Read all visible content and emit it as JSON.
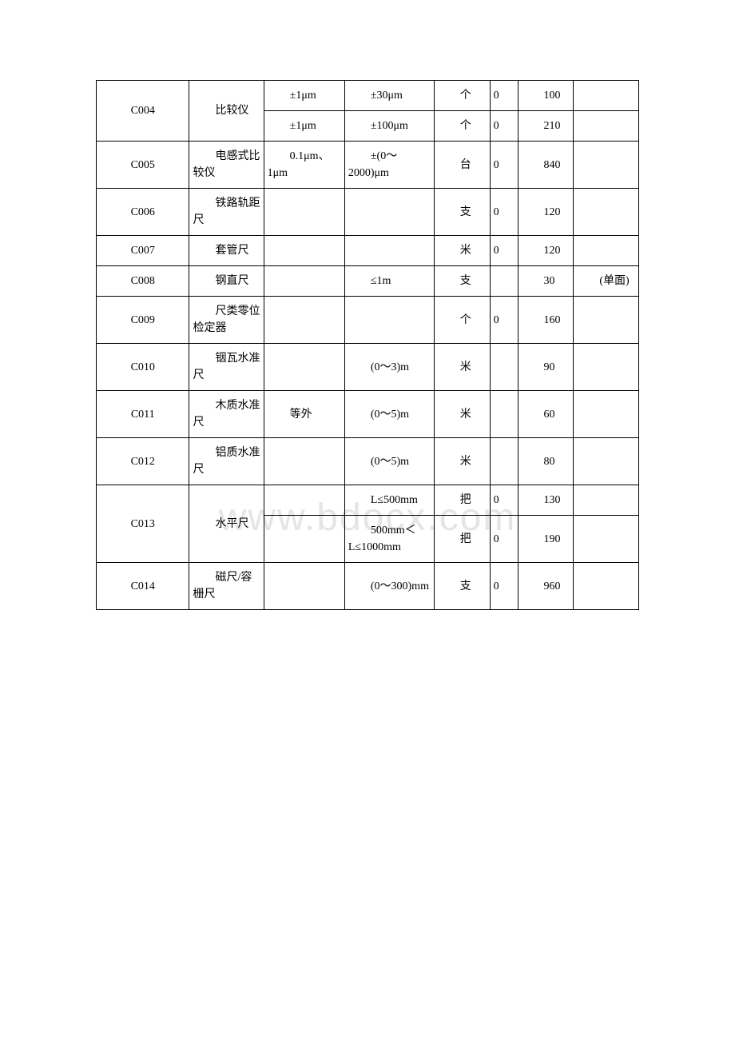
{
  "watermark": "www.bdocx.com",
  "rows": [
    {
      "code": "C004",
      "name": "比较仪",
      "spec1": "±1μm",
      "spec2": "±30μm",
      "unit": "个",
      "num1": "0",
      "num2": "100",
      "note": "",
      "rowspan_code": 2,
      "rowspan_name": 2
    },
    {
      "code": "",
      "name": "",
      "spec1": "±1μm",
      "spec2": "±100μm",
      "unit": "个",
      "num1": "0",
      "num2": "210",
      "note": ""
    },
    {
      "code": "C005",
      "name": "电感式比较仪",
      "spec1": "0.1μm、1μm",
      "spec2": "±(0～2000)μm",
      "unit": "台",
      "num1": "0",
      "num2": "840",
      "note": ""
    },
    {
      "code": "C006",
      "name": "铁路轨距尺",
      "spec1": "",
      "spec2": "",
      "unit": "支",
      "num1": "0",
      "num2": "120",
      "note": ""
    },
    {
      "code": "C007",
      "name": "套管尺",
      "spec1": "",
      "spec2": "",
      "unit": "米",
      "num1": "0",
      "num2": "120",
      "note": ""
    },
    {
      "code": "C008",
      "name": "钢直尺",
      "spec1": "",
      "spec2": "≤1m",
      "unit": "支",
      "num1": "",
      "num2": "30",
      "note": "(单面)"
    },
    {
      "code": "C009",
      "name": "尺类零位检定器",
      "spec1": "",
      "spec2": "",
      "unit": "个",
      "num1": "0",
      "num2": "160",
      "note": ""
    },
    {
      "code": "C010",
      "name": "铟瓦水准尺",
      "spec1": "",
      "spec2": "(0～3)m",
      "unit": "米",
      "num1": "",
      "num2": "90",
      "note": ""
    },
    {
      "code": "C011",
      "name": "木质水准尺",
      "spec1": "等外",
      "spec2": "(0～5)m",
      "unit": "米",
      "num1": "",
      "num2": "60",
      "note": ""
    },
    {
      "code": "C012",
      "name": "铝质水准尺",
      "spec1": "",
      "spec2": "(0～5)m",
      "unit": "米",
      "num1": "",
      "num2": "80",
      "note": ""
    },
    {
      "code": "C013",
      "name": "水平尺",
      "spec1": "",
      "spec2": "L≤500mm",
      "unit": "把",
      "num1": "0",
      "num2": "130",
      "note": "",
      "rowspan_code": 2,
      "rowspan_name": 2
    },
    {
      "code": "",
      "name": "",
      "spec1": "",
      "spec2": "500mm＜L≤1000mm",
      "unit": "把",
      "num1": "0",
      "num2": "190",
      "note": ""
    },
    {
      "code": "C014",
      "name": "磁尺/容栅尺",
      "spec1": "",
      "spec2": "(0～300)mm",
      "unit": "支",
      "num1": "0",
      "num2": "960",
      "note": ""
    }
  ],
  "table": {
    "border_color": "#000000",
    "font_size": 14,
    "col_widths": {
      "code": 100,
      "name": 80,
      "spec1": 80,
      "spec2": 90,
      "unit": 60,
      "num1": 30,
      "num2": 60,
      "note": 70
    }
  }
}
